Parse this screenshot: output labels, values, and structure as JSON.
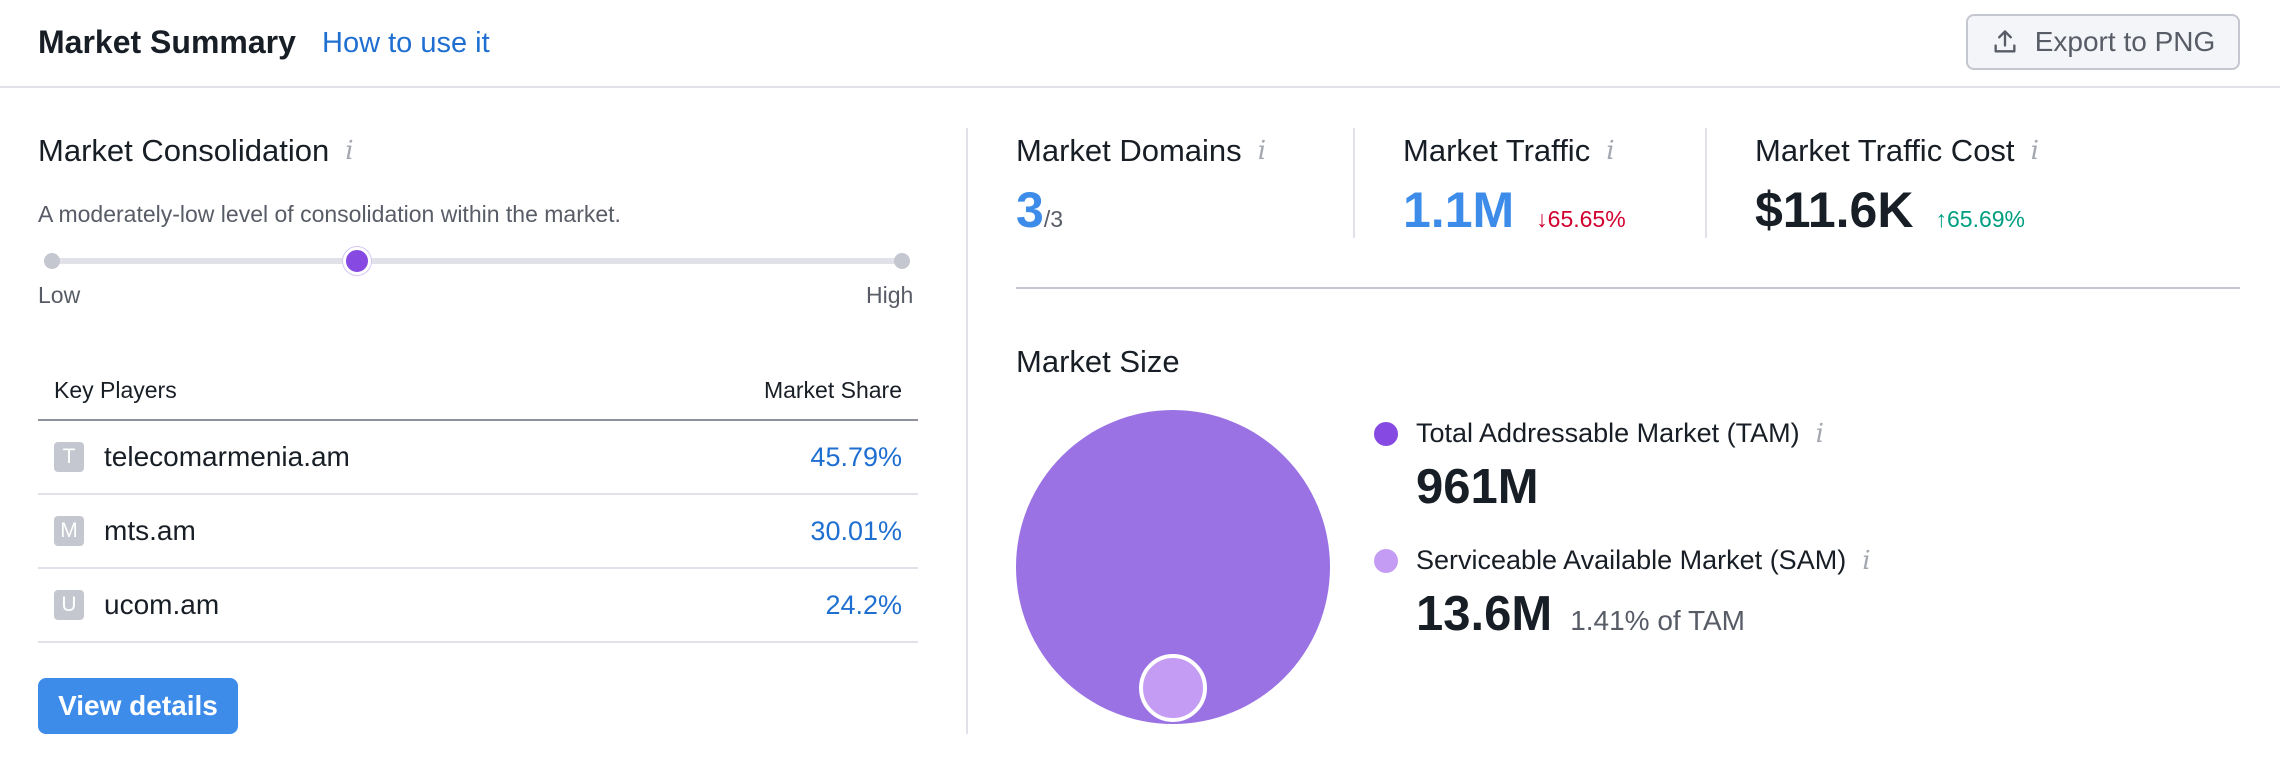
{
  "header": {
    "title": "Market Summary",
    "how_to_link": "How to use it",
    "export_button": "Export to PNG"
  },
  "consolidation": {
    "title": "Market Consolidation",
    "description": "A moderately-low level of consolidation within the market.",
    "level": 0.36,
    "low_label": "Low",
    "high_label": "High"
  },
  "key_players": {
    "col_player": "Key Players",
    "col_share": "Market Share",
    "rows": [
      {
        "initial": "T",
        "domain": "telecomarmenia.am",
        "share": "45.79%"
      },
      {
        "initial": "M",
        "domain": "mts.am",
        "share": "30.01%"
      },
      {
        "initial": "U",
        "domain": "ucom.am",
        "share": "24.2%"
      }
    ]
  },
  "view_details_button": "View details",
  "metrics": {
    "domains": {
      "label": "Market Domains",
      "value": "3",
      "total": "/3"
    },
    "traffic": {
      "label": "Market Traffic",
      "value": "1.1M",
      "delta": "65.65%",
      "direction": "down"
    },
    "cost": {
      "label": "Market Traffic Cost",
      "value": "$11.6K",
      "delta": "65.69%",
      "direction": "up"
    }
  },
  "market_size": {
    "title": "Market Size",
    "tam": {
      "label": "Total Addressable Market (TAM)",
      "value": "961M"
    },
    "sam": {
      "label": "Serviceable Available Market (SAM)",
      "value": "13.6M",
      "note": "1.41% of TAM",
      "fraction_of_tam": 0.0141
    }
  },
  "colors": {
    "accent_blue": "#3d8cea",
    "link_blue": "#1f6fd1",
    "tam_purple": "#9a72e3",
    "tam_dot": "#8649e1",
    "sam_purple": "#c49cf4",
    "delta_down": "#d1002f",
    "delta_up": "#009f81"
  },
  "icons": {
    "export": "upload-icon",
    "info": "info-icon",
    "arrow_down": "arrow-down-icon",
    "arrow_up": "arrow-up-icon"
  }
}
